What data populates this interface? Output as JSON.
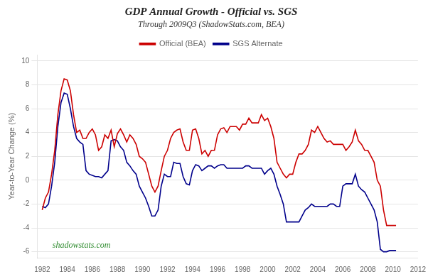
{
  "chart_data": {
    "type": "line",
    "title": "GDP Annual Growth - Official vs. SGS",
    "subtitle": "Through 2009Q3 (ShadowStats.com, BEA)",
    "ylabel": "Year-to-Year Change (%)",
    "annotations": [
      {
        "text": "shadowstats.com",
        "color": "#2e8b2e"
      }
    ],
    "x": [
      1982,
      1982.25,
      1982.5,
      1982.75,
      1983,
      1983.25,
      1983.5,
      1983.75,
      1984,
      1984.25,
      1984.5,
      1984.75,
      1985,
      1985.25,
      1985.5,
      1985.75,
      1986,
      1986.25,
      1986.5,
      1986.75,
      1987,
      1987.25,
      1987.5,
      1987.75,
      1988,
      1988.25,
      1988.5,
      1988.75,
      1989,
      1989.25,
      1989.5,
      1989.75,
      1990,
      1990.25,
      1990.5,
      1990.75,
      1991,
      1991.25,
      1991.5,
      1991.75,
      1992,
      1992.25,
      1992.5,
      1992.75,
      1993,
      1993.25,
      1993.5,
      1993.75,
      1994,
      1994.25,
      1994.5,
      1994.75,
      1995,
      1995.25,
      1995.5,
      1995.75,
      1996,
      1996.25,
      1996.5,
      1996.75,
      1997,
      1997.25,
      1997.5,
      1997.75,
      1998,
      1998.25,
      1998.5,
      1998.75,
      1999,
      1999.25,
      1999.5,
      1999.75,
      2000,
      2000.25,
      2000.5,
      2000.75,
      2001,
      2001.25,
      2001.5,
      2001.75,
      2002,
      2002.25,
      2002.5,
      2002.75,
      2003,
      2003.25,
      2003.5,
      2003.75,
      2004,
      2004.25,
      2004.5,
      2004.75,
      2005,
      2005.25,
      2005.5,
      2005.75,
      2006,
      2006.25,
      2006.5,
      2006.75,
      2007,
      2007.25,
      2007.5,
      2007.75,
      2008,
      2008.25,
      2008.5,
      2008.75,
      2009,
      2009.25,
      2009.5,
      2009.75,
      2010,
      2010.25
    ],
    "series": [
      {
        "name": "Official (BEA)",
        "color": "#cc0000",
        "values": [
          -2.5,
          -1.5,
          -1.0,
          0.5,
          2.5,
          5.5,
          7.5,
          8.5,
          8.4,
          7.5,
          5.5,
          4.0,
          4.2,
          3.5,
          3.5,
          4.0,
          4.3,
          3.8,
          2.5,
          2.8,
          3.8,
          3.5,
          4.2,
          2.8,
          3.9,
          4.3,
          3.8,
          3.2,
          3.8,
          3.5,
          3.0,
          2.0,
          1.8,
          1.5,
          0.5,
          -0.5,
          -1.0,
          -0.5,
          0.8,
          2.0,
          2.5,
          3.5,
          4.0,
          4.2,
          4.3,
          3.2,
          2.5,
          2.5,
          4.2,
          4.3,
          3.5,
          2.2,
          2.5,
          2.0,
          2.5,
          2.5,
          3.8,
          4.3,
          4.4,
          4.0,
          4.5,
          4.5,
          4.5,
          4.2,
          4.7,
          4.7,
          5.2,
          4.8,
          4.8,
          4.8,
          5.5,
          5.0,
          5.2,
          4.5,
          3.5,
          1.5,
          1.0,
          0.5,
          0.2,
          0.5,
          0.5,
          1.5,
          2.2,
          2.2,
          2.5,
          3.0,
          4.2,
          4.0,
          4.5,
          4.0,
          3.5,
          3.2,
          3.3,
          3.0,
          3.0,
          3.0,
          3.0,
          2.5,
          2.8,
          3.2,
          4.2,
          3.3,
          3.0,
          2.5,
          2.5,
          2.0,
          1.5,
          0.0,
          -0.5,
          -2.5,
          -3.8,
          -3.8,
          -3.8,
          -3.8
        ]
      },
      {
        "name": "SGS Alternate",
        "color": "#00008b",
        "values": [
          -2.2,
          -2.3,
          -2.0,
          -0.5,
          1.5,
          4.5,
          6.5,
          7.3,
          7.2,
          6.0,
          4.5,
          3.5,
          3.2,
          3.0,
          0.8,
          0.5,
          0.4,
          0.3,
          0.3,
          0.2,
          0.5,
          0.8,
          3.3,
          3.4,
          3.3,
          2.8,
          2.5,
          1.5,
          1.2,
          0.8,
          0.5,
          -0.5,
          -1.0,
          -1.5,
          -2.2,
          -3.0,
          -3.0,
          -2.5,
          -0.5,
          0.5,
          0.3,
          0.3,
          1.5,
          1.4,
          1.4,
          0.3,
          -0.3,
          -0.4,
          0.8,
          1.3,
          1.2,
          0.8,
          1.0,
          1.2,
          1.2,
          1.0,
          1.2,
          1.3,
          1.3,
          1.0,
          1.0,
          1.0,
          1.0,
          1.0,
          1.0,
          1.2,
          1.2,
          1.0,
          1.0,
          1.0,
          1.0,
          0.5,
          0.8,
          1.0,
          0.5,
          -0.5,
          -1.2,
          -2.0,
          -3.5,
          -3.5,
          -3.5,
          -3.5,
          -3.5,
          -3.0,
          -2.5,
          -2.3,
          -2.0,
          -2.2,
          -2.2,
          -2.2,
          -2.2,
          -2.2,
          -2.0,
          -2.0,
          -2.2,
          -2.2,
          -0.5,
          -0.3,
          -0.3,
          -0.3,
          0.5,
          -0.5,
          -0.8,
          -1.0,
          -1.5,
          -2.0,
          -2.5,
          -3.5,
          -5.8,
          -6.0,
          -6.0,
          -5.9,
          -5.9,
          -5.9
        ]
      }
    ],
    "xlim": [
      1981.6,
      2012.0
    ],
    "xticks": [
      1982,
      1984,
      1986,
      1988,
      1990,
      1992,
      1994,
      1996,
      1998,
      2000,
      2002,
      2004,
      2006,
      2008,
      2010,
      2012
    ],
    "ylim": [
      -6.5,
      10.5
    ],
    "yticks": [
      -6,
      -4,
      -2,
      0,
      2,
      4,
      6,
      8,
      10
    ],
    "grid": "y",
    "legend": "top"
  }
}
